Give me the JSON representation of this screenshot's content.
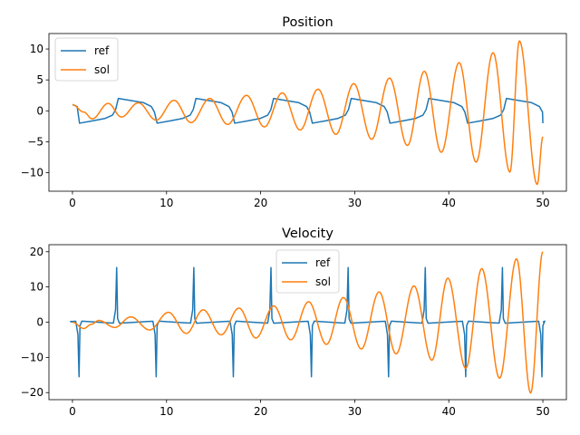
{
  "chart_data": [
    {
      "type": "line",
      "title": "Position",
      "xlabel": "",
      "ylabel": "",
      "xlim": [
        -2.5,
        52.5
      ],
      "ylim": [
        -13,
        12.5
      ],
      "xticks": [
        0,
        10,
        20,
        30,
        40,
        50
      ],
      "yticks": [
        -10,
        -5,
        0,
        5,
        10
      ],
      "grid": false,
      "legend": "top-left",
      "series": [
        {
          "name": "ref",
          "color": "#1f77b4",
          "model": "relaxation-position",
          "x_range": [
            0,
            50
          ],
          "period": 8.25,
          "amplitude": 2.0,
          "start": 1.0,
          "points": [
            [
              0,
              1.0
            ],
            [
              0.5,
              0.7
            ],
            [
              0.75,
              -2.0
            ],
            [
              2,
              -1.6
            ],
            [
              3,
              -1.3
            ],
            [
              4.0,
              -0.4
            ],
            [
              4.5,
              0.5
            ],
            [
              4.72,
              2.0
            ],
            [
              6,
              1.6
            ],
            [
              7,
              1.4
            ],
            [
              8.3,
              0.6
            ],
            [
              8.8,
              -0.5
            ],
            [
              8.98,
              -2.0
            ],
            [
              50,
              -2.0
            ]
          ]
        },
        {
          "name": "sol",
          "color": "#ff7f0e",
          "model": "growing-oscillation",
          "x_range": [
            0,
            50
          ],
          "start": 1.0,
          "end": -4.2,
          "peaks": [
            [
              0,
              1.0
            ],
            [
              1.2,
              -0.2
            ],
            [
              2.1,
              -1.3
            ],
            [
              3.8,
              1.2
            ],
            [
              5.2,
              -1.0
            ],
            [
              7.0,
              1.3
            ],
            [
              8.9,
              -1.5
            ],
            [
              10.8,
              1.7
            ],
            [
              12.6,
              -1.9
            ],
            [
              14.6,
              2.0
            ],
            [
              16.5,
              -2.2
            ],
            [
              18.5,
              2.5
            ],
            [
              20.4,
              -2.6
            ],
            [
              22.3,
              2.9
            ],
            [
              24.2,
              -3.1
            ],
            [
              26.1,
              3.5
            ],
            [
              28.0,
              -3.8
            ],
            [
              29.9,
              4.4
            ],
            [
              31.8,
              -4.6
            ],
            [
              33.7,
              5.3
            ],
            [
              35.6,
              -5.6
            ],
            [
              37.4,
              6.4
            ],
            [
              39.2,
              -6.7
            ],
            [
              41.1,
              7.8
            ],
            [
              42.9,
              -8.3
            ],
            [
              44.7,
              9.4
            ],
            [
              46.5,
              -9.9
            ],
            [
              47.5,
              11.3
            ],
            [
              49.4,
              -11.9
            ],
            [
              50,
              -4.2
            ]
          ]
        }
      ]
    },
    {
      "type": "line",
      "title": "Velocity",
      "xlabel": "",
      "ylabel": "",
      "xlim": [
        -2.5,
        52.5
      ],
      "ylim": [
        -22,
        22
      ],
      "xticks": [
        0,
        10,
        20,
        30,
        40,
        50
      ],
      "yticks": [
        -20,
        -10,
        0,
        10,
        20
      ],
      "grid": false,
      "legend": "upper-center",
      "series": [
        {
          "name": "ref",
          "color": "#1f77b4",
          "model": "relaxation-velocity",
          "x_range": [
            0,
            50
          ],
          "spikes_down_at": [
            0.7,
            8.9,
            17.1,
            25.4,
            33.6,
            41.8,
            49.9
          ],
          "spikes_up_at": [
            4.7,
            12.9,
            21.1,
            29.3,
            37.5,
            45.7
          ],
          "spike_value": 15.5,
          "baseline": 0.3
        },
        {
          "name": "sol",
          "color": "#ff7f0e",
          "model": "growing-oscillation",
          "x_range": [
            0,
            50
          ],
          "start": 0,
          "end": 20.0,
          "peaks": [
            [
              0,
              0
            ],
            [
              1.2,
              -1.8
            ],
            [
              2.0,
              -0.6
            ],
            [
              2.8,
              0.5
            ],
            [
              4.5,
              -1.5
            ],
            [
              6.2,
              1.5
            ],
            [
              8.2,
              -2.2
            ],
            [
              10.2,
              2.8
            ],
            [
              12.1,
              -3.2
            ],
            [
              13.9,
              3.5
            ],
            [
              15.8,
              -3.6
            ],
            [
              17.7,
              4.0
            ],
            [
              19.5,
              -4.5
            ],
            [
              21.4,
              4.6
            ],
            [
              23.2,
              -5.0
            ],
            [
              25.1,
              5.8
            ],
            [
              27.0,
              -6.3
            ],
            [
              28.8,
              7.0
            ],
            [
              30.7,
              -7.6
            ],
            [
              32.6,
              8.6
            ],
            [
              34.4,
              -9.0
            ],
            [
              36.3,
              10.3
            ],
            [
              38.2,
              -10.8
            ],
            [
              39.9,
              12.5
            ],
            [
              41.8,
              -13.1
            ],
            [
              43.5,
              15.2
            ],
            [
              45.4,
              -15.9
            ],
            [
              47.2,
              18.0
            ],
            [
              48.7,
              -20.1
            ],
            [
              50,
              20.0
            ]
          ]
        }
      ]
    }
  ]
}
